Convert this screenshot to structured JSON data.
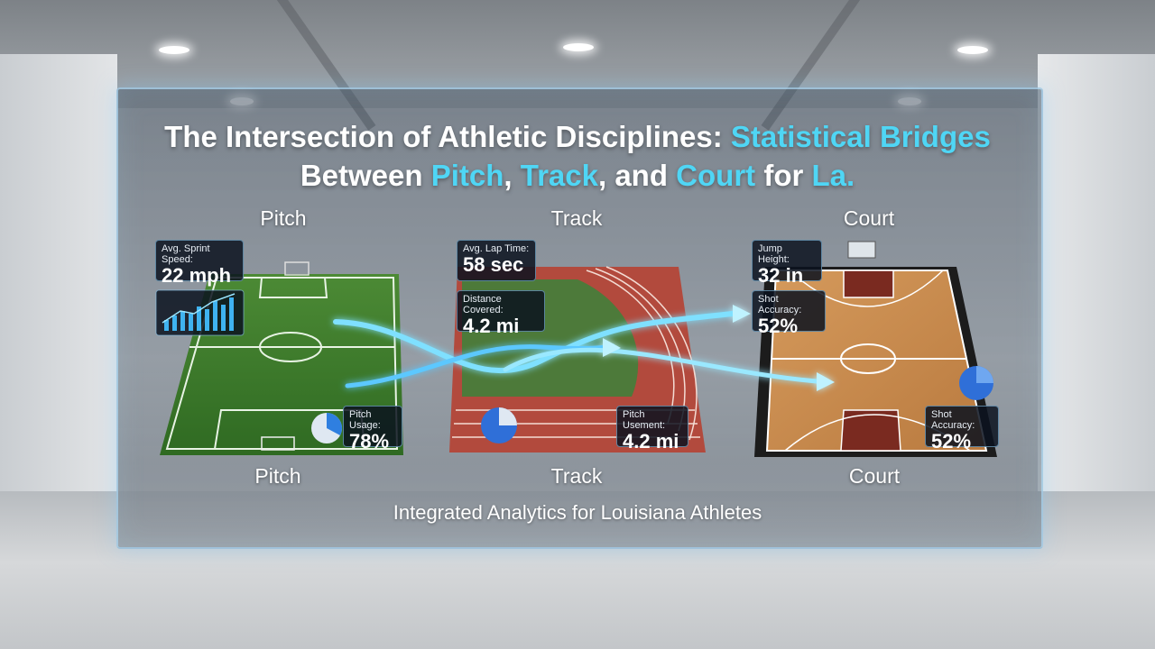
{
  "headline": {
    "part1": "The Intersection of Athletic Disciplines: ",
    "part2": "Statistical Bridges",
    "part3": "Between ",
    "part4": "Pitch",
    "part5": ", ",
    "part6": "Track",
    "part7": ", and ",
    "part8": "Court",
    "part9": " for ",
    "part10": "La."
  },
  "top_labels": {
    "pitch": "Pitch",
    "track": "Track",
    "court": "Court"
  },
  "bottom_labels": {
    "pitch": "Pitch",
    "track": "Track",
    "court": "Court"
  },
  "stats": {
    "sprint": {
      "label": "Avg. Sprint Speed:",
      "value": "22 mph"
    },
    "pitch_usage": {
      "label": "Pitch Usage:",
      "value": "78%"
    },
    "lap": {
      "label": "Avg. Lap Time:",
      "value": "58 sec"
    },
    "distance": {
      "label": "Distance Covered:",
      "value": "4.2 mi"
    },
    "pitch_usement": {
      "label": "Pitch Usement:",
      "value": "4.2 mi"
    },
    "jump": {
      "label": "Jump Height:",
      "value": "32 in"
    },
    "shot1": {
      "label": "Shot Accuracy:",
      "value": "52%"
    },
    "shot2": {
      "label": "Shot Accuracy:",
      "value": "52%"
    }
  },
  "subtitle": "Integrated Analytics for Louisiana Athletes",
  "colors": {
    "accent": "#4fd6f5",
    "pitch": "#3f7a2c",
    "track": "#b24a3d",
    "court": "#c98a4e",
    "flow": "#7fe0ff"
  }
}
